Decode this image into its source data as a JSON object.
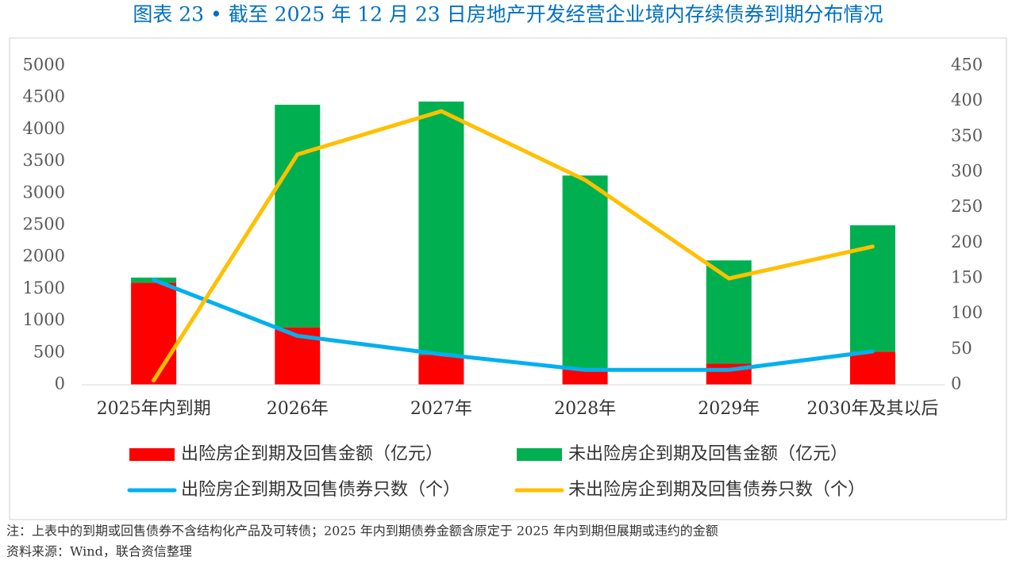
{
  "title": "图表 23 • 截至 2025 年 12 月 23 日房地产开发经营企业境内存续债券到期分布情况",
  "chart_data": {
    "type": "bar",
    "stacked": true,
    "categories": [
      "2025年内到期",
      "2026年",
      "2027年",
      "2028年",
      "2029年",
      "2030年及其以后"
    ],
    "series": [
      {
        "name": "出险房企到期及回售金额（亿元）",
        "type": "bar",
        "color": "#ff0000",
        "values": [
          1600,
          900,
          470,
          250,
          330,
          520
        ]
      },
      {
        "name": "未出险房企到期及回售金额（亿元）",
        "type": "bar",
        "color": "#00b050",
        "values": [
          80,
          3490,
          3970,
          3030,
          1620,
          1980
        ]
      },
      {
        "name": "出险房企到期及回售债券只数（个）",
        "type": "line",
        "axis": "y2",
        "color": "#00b0f0",
        "values": [
          148,
          69,
          43,
          21,
          21,
          47
        ]
      },
      {
        "name": "未出险房企到期及回售债券只数（个）",
        "type": "line",
        "axis": "y2",
        "color": "#ffc000",
        "values": [
          6,
          325,
          386,
          289,
          150,
          195
        ]
      }
    ],
    "ylim": [
      0,
      5000
    ],
    "yticks": [
      0,
      500,
      1000,
      1500,
      2000,
      2500,
      3000,
      3500,
      4000,
      4500,
      5000
    ],
    "y2lim": [
      0,
      450
    ],
    "y2ticks": [
      0,
      50,
      100,
      150,
      200,
      250,
      300,
      350,
      400,
      450
    ],
    "grid": false
  },
  "notes": [
    "注：上表中的到期或回售债券不含结构化产品及可转债；2025 年内到期债券金额含原定于 2025 年内到期但展期或违约的金额",
    "资料来源：Wind，联合资信整理"
  ]
}
